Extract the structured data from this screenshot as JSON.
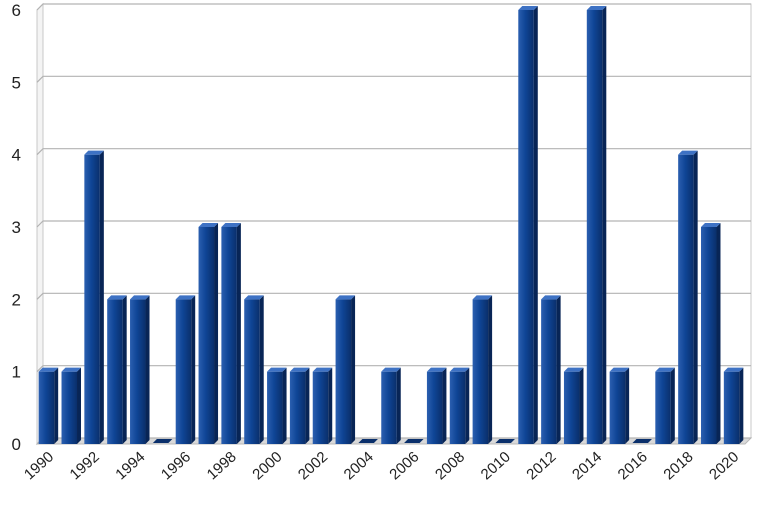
{
  "chart_data": {
    "type": "bar",
    "title": "",
    "xlabel": "",
    "ylabel": "",
    "ylim": [
      0,
      6
    ],
    "yticks": [
      0,
      1,
      2,
      3,
      4,
      5,
      6
    ],
    "grid": true,
    "categories": [
      "1990",
      "1991",
      "1992",
      "1993",
      "1994",
      "1995",
      "1996",
      "1997",
      "1998",
      "1999",
      "2000",
      "2001",
      "2002",
      "2003",
      "2004",
      "2005",
      "2006",
      "2007",
      "2008",
      "2009",
      "2010",
      "2011",
      "2012",
      "2013",
      "2014",
      "2015",
      "2016",
      "2017",
      "2018",
      "2019",
      "2020"
    ],
    "x_tick_labels": [
      "1990",
      "1992",
      "1994",
      "1996",
      "1998",
      "2000",
      "2002",
      "2004",
      "2006",
      "2008",
      "2010",
      "2012",
      "2014",
      "2016",
      "2018",
      "2020"
    ],
    "values": [
      1,
      1,
      4,
      2,
      2,
      0,
      2,
      3,
      3,
      2,
      1,
      1,
      1,
      2,
      0,
      1,
      0,
      1,
      1,
      2,
      0,
      6,
      2,
      1,
      6,
      1,
      0,
      1,
      4,
      3,
      1
    ],
    "bar_color": "#0d3f8c"
  }
}
